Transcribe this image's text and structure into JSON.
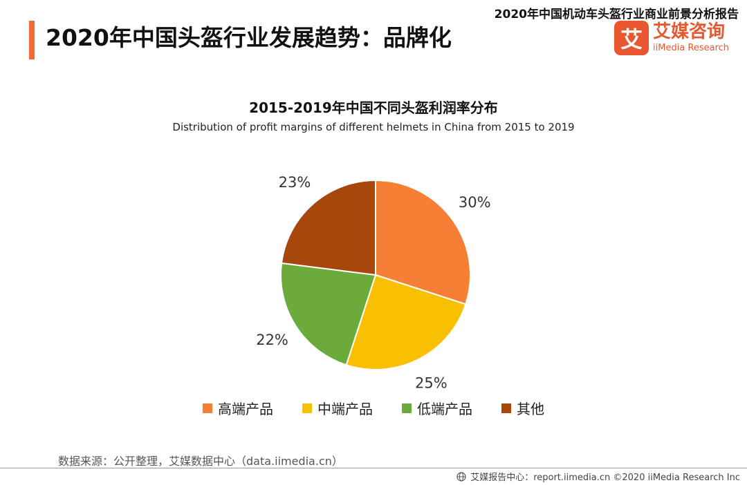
{
  "header": {
    "report_title": "2020年中国机动车头盔行业商业前景分析报告",
    "page_title": "2020年中国头盔行业发展趋势：品牌化"
  },
  "logo": {
    "mark_text": "艾",
    "name": "艾媒咨询",
    "en": "iiMedia Research",
    "brand_color": "#e8572f"
  },
  "chart_data": {
    "type": "pie",
    "title": "2015-2019年中国不同头盔利润率分布",
    "subtitle": "Distribution of profit margins of different helmets in China from 2015 to 2019",
    "slices": [
      {
        "label": "高端产品",
        "value": 30,
        "value_label": "30%",
        "color": "#f47f35"
      },
      {
        "label": "中端产品",
        "value": 25,
        "value_label": "25%",
        "color": "#f9c002"
      },
      {
        "label": "低端产品",
        "value": 22,
        "value_label": "22%",
        "color": "#6aab3c"
      },
      {
        "label": "其他",
        "value": 23,
        "value_label": "23%",
        "color": "#a8470b"
      }
    ],
    "legend_position": "bottom",
    "start_angle": "12 o'clock",
    "direction": "clockwise"
  },
  "source": "数据来源：公开整理，艾媒数据中心（data.iimedia.cn）",
  "footer": {
    "icon": "globe-icon",
    "text": "艾媒报告中心：report.iimedia.cn  ©2020  iiMedia Research  Inc"
  },
  "colors": {
    "accent": "#f4683a"
  }
}
